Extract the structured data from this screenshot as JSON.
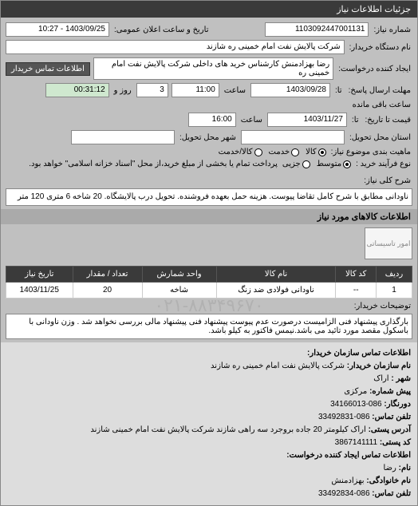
{
  "header": {
    "title": "جزئیات اطلاعات نیاز"
  },
  "form": {
    "req_no_label": "شماره نیاز:",
    "req_no": "1103092447001131",
    "pubdate_label": "تاریخ و ساعت اعلان عمومی:",
    "pubdate": "1403/09/25 - 10:27",
    "buyer_org_label": "نام دستگاه خریدار:",
    "buyer_org": "شرکت پالایش نفت امام خمینی  ره  شازند",
    "requester_label": "ایجاد کننده درخواست:",
    "requester": "رضا بهزادمنش کارشناس خرید های داخلی  شرکت پالایش نفت امام خمینی  ره",
    "buyer_contact_btn": "اطلاعات تماس خریدار",
    "deadline_label": "تا:",
    "deadline_send_label": "مهلت ارسال پاسخ:",
    "deadline_date": "1403/09/28",
    "deadline_time_lbl": "ساعت",
    "deadline_time": "11:00",
    "remain_days": "3",
    "remain_days_lbl": "روز و",
    "remain_time": "00:31:12",
    "remain_lbl": "ساعت باقی مانده",
    "quote_valid_label_pre": "قیمت تا تاریخ:",
    "quote_valid_label": "تا:",
    "quote_valid_date": "1403/11/27",
    "quote_valid_time": "16:00",
    "city_label": "شهر محل تحویل:",
    "city": "",
    "street_label": "استان محل تحویل:",
    "street": "",
    "nature_label": "ماهیت بندی موضوع نیاز:",
    "nature_opts": [
      "کالا",
      "خدمت",
      "کالا/خدمت"
    ],
    "nature_selected": 0,
    "paytype_label": "نوع فرآیند خرید :",
    "paytype_opts": [
      "متوسط",
      "جزیی"
    ],
    "paytype_selected": 0,
    "paynote": "پرداخت تمام یا بخشی از مبلغ خرید،از محل \"اسناد خزانه اسلامی\" خواهد بود.",
    "gendesc_label": "شرح کلی نیاز:",
    "gendesc": "ناودانی مطابق با شرح کامل تقاضا پیوست. هزینه حمل بعهده فروشنده. تحویل درب پالایشگاه. 20 شاخه 6 متری 120 متر",
    "items_section": "اطلاعات کالاهای مورد نیاز",
    "imgph": "امور تاسیساتی",
    "cols": [
      "ردیف",
      "کد کالا",
      "نام کالا",
      "واحد شمارش",
      "تعداد / مقدار",
      "تاریخ نیاز"
    ],
    "row": {
      "idx": "1",
      "code": "--",
      "name": "ناودانی فولادی ضد زنگ",
      "unit": "شاخه",
      "qty": "20",
      "date": "1403/11/25"
    },
    "buyernote_label": "توضیحات خریدار:",
    "buyernote": "بارگذاری پیشنهاد فنی الزامیست درصورت عدم پیوست پیشنهاد فنی پیشنهاد مالی بررسی نخواهد شد . وزن ناودانی با باسکول مقصد مورد تائید می باشد.نیمس فاکتور به کیلو باشد.",
    "wm": "۰۲۱-۸۸۳۴۹۶۷۰"
  },
  "contact": {
    "title": "اطلاعات تماس سازمان خریدار:",
    "org_label": "نام سازمان خریدار:",
    "org": "شرکت پالایش نفت امام خمینی ره شازند",
    "city_label": "شهر :",
    "city": "اراک",
    "pref_label": "پیش شماره:",
    "pref": "مرکزی",
    "fax_label": "دورنگار:",
    "fax": "086-34166013",
    "tel_label": "تلفن تماس:",
    "tel": "086-33492831",
    "addr_label": "آدرس پستی:",
    "addr": "اراک کیلومتر 20 جاده بروجرد سه راهی شازند شرکت پالایش نفت امام خمینی شازند",
    "zip_label": "کد پستی:",
    "zip": "3867141111",
    "req_contact_title": "اطلاعات تماس ایجاد کننده درخواست:",
    "name_label": "نام:",
    "name": "رضا",
    "lname_label": "نام خانوادگی:",
    "lname": "بهزادمنش",
    "tel2": "086-33492834"
  },
  "colors": {
    "header_bg": "#3a3a3a",
    "panel_bg": "#c0c0c0",
    "field_bg": "#ffffff",
    "th_bg": "#3a3a3a"
  }
}
